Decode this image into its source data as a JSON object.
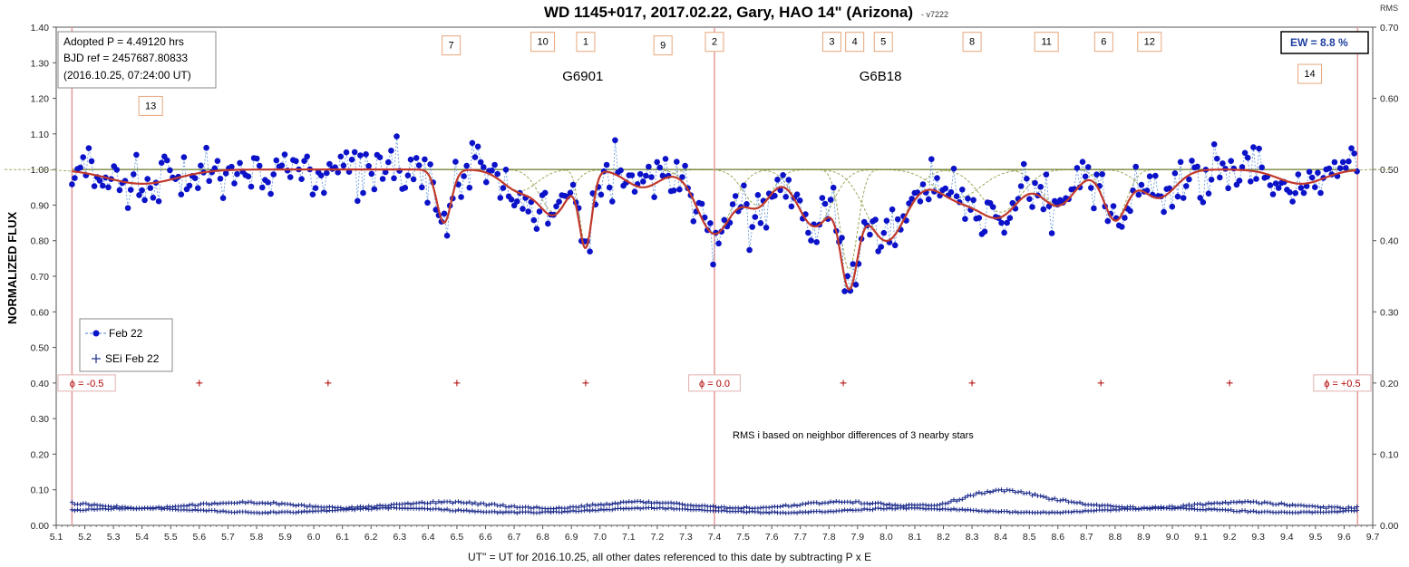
{
  "chart_data": {
    "type": "scatter",
    "title": "WD 1145+017, 2017.02.22, Gary, HAO 14\" (Arizona)",
    "version_note": "- v7222",
    "xlabel": "UT\" = UT for 2016.10.25, all other dates referenced to this date by subtracting P x E",
    "ylabel": "NORMALIZED FLUX",
    "y2label": "RMS",
    "xlim": [
      5.1,
      9.7
    ],
    "ylim": [
      0.0,
      1.4
    ],
    "y2lim": [
      0.0,
      0.7
    ],
    "x_ticks": [
      "5.1",
      "5.2",
      "5.3",
      "5.4",
      "5.5",
      "5.6",
      "5.7",
      "5.8",
      "5.9",
      "6.0",
      "6.1",
      "6.2",
      "6.3",
      "6.4",
      "6.5",
      "6.6",
      "6.7",
      "6.8",
      "6.9",
      "7.0",
      "7.1",
      "7.2",
      "7.3",
      "7.4",
      "7.5",
      "7.6",
      "7.7",
      "7.8",
      "7.9",
      "8.0",
      "8.1",
      "8.2",
      "8.3",
      "8.4",
      "8.5",
      "8.6",
      "8.7",
      "8.8",
      "8.9",
      "9.0",
      "9.1",
      "9.2",
      "9.3",
      "9.4",
      "9.5",
      "9.6",
      "9.7"
    ],
    "y_ticks": [
      "0.00",
      "0.10",
      "0.20",
      "0.30",
      "0.40",
      "0.50",
      "0.60",
      "0.70",
      "0.80",
      "0.90",
      "1.00",
      "1.10",
      "1.20",
      "1.30",
      "1.40"
    ],
    "y2_ticks": [
      "0.00",
      "0.10",
      "0.20",
      "0.30",
      "0.40",
      "0.50",
      "0.60",
      "0.70"
    ],
    "grid": false,
    "legend_position": "left",
    "legend": [
      {
        "label": "Feb 22",
        "marker": "dot-dashed",
        "color": "#0b12c8"
      },
      {
        "label": "SEi Feb 22",
        "marker": "plus",
        "color": "#1c2b8a"
      }
    ],
    "info_box": {
      "line1": "Adopted P = 4.49120  hrs",
      "line2": "BJD ref = 2457687.80833",
      "line3": "(2016.10.25,  07:24:00  UT)"
    },
    "ew_label": "EW = 8.8 %",
    "dip_labels": [
      {
        "label": "13",
        "x": 5.43,
        "y": 1.18
      },
      {
        "label": "7",
        "x": 6.48,
        "y": 1.35
      },
      {
        "label": "10",
        "x": 6.8,
        "y": 1.36
      },
      {
        "label": "1",
        "x": 6.95,
        "y": 1.36
      },
      {
        "label": "9",
        "x": 7.22,
        "y": 1.35
      },
      {
        "label": "2",
        "x": 7.4,
        "y": 1.36
      },
      {
        "label": "3",
        "x": 7.81,
        "y": 1.36
      },
      {
        "label": "4",
        "x": 7.89,
        "y": 1.36
      },
      {
        "label": "5",
        "x": 7.99,
        "y": 1.36
      },
      {
        "label": "8",
        "x": 8.3,
        "y": 1.36
      },
      {
        "label": "11",
        "x": 8.56,
        "y": 1.36
      },
      {
        "label": "6",
        "x": 8.76,
        "y": 1.36
      },
      {
        "label": "12",
        "x": 8.92,
        "y": 1.36
      },
      {
        "label": "14",
        "x": 9.48,
        "y": 1.27
      }
    ],
    "group_labels": [
      {
        "label": "G6901",
        "x": 6.94,
        "y": 1.25
      },
      {
        "label": "G6B18",
        "x": 7.98,
        "y": 1.25
      }
    ],
    "phase_markers": [
      {
        "label": "ϕ = -0.5",
        "x": 5.155
      },
      {
        "label": "ϕ = 0.0",
        "x": 7.4
      },
      {
        "label": "ϕ = +0.5",
        "x": 9.647
      }
    ],
    "phase_tick_x": [
      5.6,
      6.05,
      6.5,
      6.95,
      7.85,
      8.3,
      8.75,
      9.2
    ],
    "phase_tick_y": 0.4,
    "baseline_y": 1.0,
    "rms_note": "RMS i based on neighbor differences of 3 nearby stars",
    "dips": [
      {
        "x": 6.455,
        "depth": 0.15,
        "w": 0.025
      },
      {
        "x": 6.72,
        "depth": 0.06,
        "w": 0.06
      },
      {
        "x": 6.84,
        "depth": 0.12,
        "w": 0.05
      },
      {
        "x": 6.95,
        "depth": 0.21,
        "w": 0.022
      },
      {
        "x": 7.15,
        "depth": 0.05,
        "w": 0.06
      },
      {
        "x": 7.4,
        "depth": 0.18,
        "w": 0.06
      },
      {
        "x": 7.55,
        "depth": 0.1,
        "w": 0.05
      },
      {
        "x": 7.75,
        "depth": 0.16,
        "w": 0.06
      },
      {
        "x": 7.87,
        "depth": 0.28,
        "w": 0.03
      },
      {
        "x": 8.0,
        "depth": 0.2,
        "w": 0.07
      },
      {
        "x": 8.25,
        "depth": 0.08,
        "w": 0.08
      },
      {
        "x": 8.4,
        "depth": 0.12,
        "w": 0.07
      },
      {
        "x": 8.6,
        "depth": 0.1,
        "w": 0.06
      },
      {
        "x": 8.8,
        "depth": 0.14,
        "w": 0.04
      },
      {
        "x": 8.95,
        "depth": 0.08,
        "w": 0.06
      },
      {
        "x": 5.4,
        "depth": 0.04,
        "w": 0.12
      },
      {
        "x": 9.45,
        "depth": 0.04,
        "w": 0.08
      }
    ],
    "series": [
      {
        "name": "Feb 22",
        "color": "#0b12c8",
        "n_points": 460,
        "x_start": 5.155,
        "x_end": 9.645,
        "scatter_sd": 0.035,
        "seed": 7222
      },
      {
        "name": "SEi Feb 22",
        "color": "#1c2b8a",
        "marker": "plus",
        "n_points": 460,
        "upper_rms_mean": 0.027,
        "lower_rms_mean": 0.02,
        "rms_bump_x": 8.38,
        "rms_bump": 0.02
      }
    ],
    "model_color": "#c0392b",
    "component_color": "#9aa85a"
  }
}
